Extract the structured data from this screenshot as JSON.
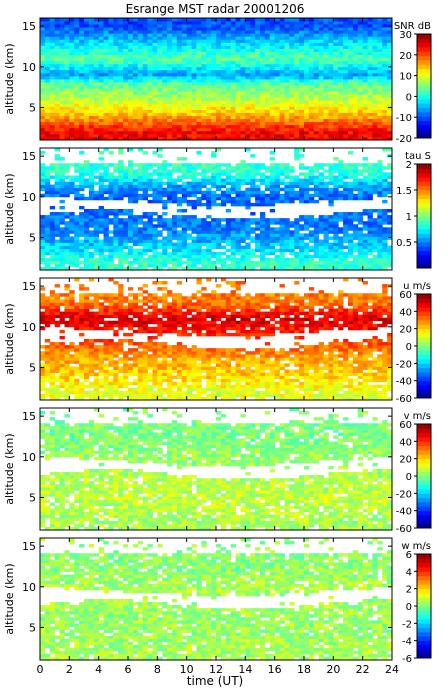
{
  "title": "Esrange MST radar 20001206",
  "x_axis": {
    "label": "time (UT)",
    "range": [
      0,
      24
    ],
    "ticks": [
      0,
      2,
      4,
      6,
      8,
      10,
      12,
      14,
      16,
      18,
      20,
      22,
      24
    ]
  },
  "y_axis": {
    "label": "altitude (km)",
    "range": [
      1,
      16
    ],
    "ticks": [
      5,
      10,
      15
    ]
  },
  "chart_data": [
    {
      "type": "heatmap",
      "title": "",
      "xlabel": "",
      "ylabel": "altitude (km)",
      "xlim": [
        0,
        24
      ],
      "ylim": [
        1,
        16
      ],
      "colorbar": {
        "label": "SNR dB",
        "range": [
          -20,
          30
        ],
        "ticks": [
          -20,
          -10,
          0,
          10,
          20,
          30
        ]
      },
      "description_values": [
        {
          "altitude_km": 2,
          "level": 24
        },
        {
          "altitude_km": 4,
          "level": 15
        },
        {
          "altitude_km": 6,
          "level": 8
        },
        {
          "altitude_km": 8,
          "level": 3
        },
        {
          "altitude_km": 9,
          "level": -6
        },
        {
          "altitude_km": 11,
          "level": 3
        },
        {
          "altitude_km": 13,
          "level": -3
        },
        {
          "altitude_km": 15,
          "level": -10
        }
      ],
      "coverage": "full"
    },
    {
      "type": "heatmap",
      "title": "",
      "xlabel": "",
      "ylabel": "altitude (km)",
      "xlim": [
        0,
        24
      ],
      "ylim": [
        1,
        16
      ],
      "colorbar": {
        "label": "tau S",
        "range": [
          0,
          2
        ],
        "ticks": [
          0.5,
          1,
          1.5,
          2
        ]
      },
      "description_values": [
        {
          "altitude_km": 2,
          "level": 0.85
        },
        {
          "altitude_km": 4,
          "level": 0.65
        },
        {
          "altitude_km": 6,
          "level": 0.5
        },
        {
          "altitude_km": 10,
          "level": 0.45
        },
        {
          "altitude_km": 11.5,
          "level": 0.6
        },
        {
          "altitude_km": 13,
          "level": 0.85
        }
      ],
      "coverage": "gaps at 8-9.5 km and above 14 km"
    },
    {
      "type": "heatmap",
      "title": "",
      "xlabel": "",
      "ylabel": "altitude (km)",
      "xlim": [
        0,
        24
      ],
      "ylim": [
        1,
        16
      ],
      "colorbar": {
        "label": "u m/s",
        "range": [
          -60,
          60
        ],
        "ticks": [
          -60,
          -40,
          -20,
          0,
          20,
          40,
          60
        ]
      },
      "description_values": [
        {
          "altitude_km": 2,
          "level": 12
        },
        {
          "altitude_km": 4,
          "level": 20
        },
        {
          "altitude_km": 6,
          "level": 25
        },
        {
          "altitude_km": 10,
          "level": 45
        },
        {
          "altitude_km": 11,
          "level": 50
        },
        {
          "altitude_km": 13,
          "level": 30
        }
      ],
      "coverage": "gaps at 8-9.5 km and above 14 km"
    },
    {
      "type": "heatmap",
      "title": "",
      "xlabel": "",
      "ylabel": "altitude (km)",
      "xlim": [
        0,
        24
      ],
      "ylim": [
        1,
        16
      ],
      "colorbar": {
        "label": "v m/s",
        "range": [
          -60,
          60
        ],
        "ticks": [
          -60,
          -40,
          -20,
          0,
          20,
          40,
          60
        ]
      },
      "description_values": [
        {
          "altitude_km": 2,
          "level": 5
        },
        {
          "altitude_km": 5,
          "level": 8
        },
        {
          "altitude_km": 10,
          "level": 3
        },
        {
          "altitude_km": 12,
          "level": 0
        }
      ],
      "coverage": "gaps at 8-9.5 km and above 14 km"
    },
    {
      "type": "heatmap",
      "title": "",
      "xlabel": "",
      "ylabel": "altitude (km)",
      "xlim": [
        0,
        24
      ],
      "ylim": [
        1,
        16
      ],
      "colorbar": {
        "label": "w m/s",
        "range": [
          -6,
          6
        ],
        "ticks": [
          -6,
          -4,
          -2,
          0,
          2,
          4,
          6
        ]
      },
      "description_values": [
        {
          "altitude_km": 2,
          "level": 0.5
        },
        {
          "altitude_km": 5,
          "level": 0.3
        },
        {
          "altitude_km": 10,
          "level": 0.5
        },
        {
          "altitude_km": 12,
          "level": 0.2
        }
      ],
      "coverage": "gaps at 8-9.5 km and above 14 km"
    }
  ]
}
